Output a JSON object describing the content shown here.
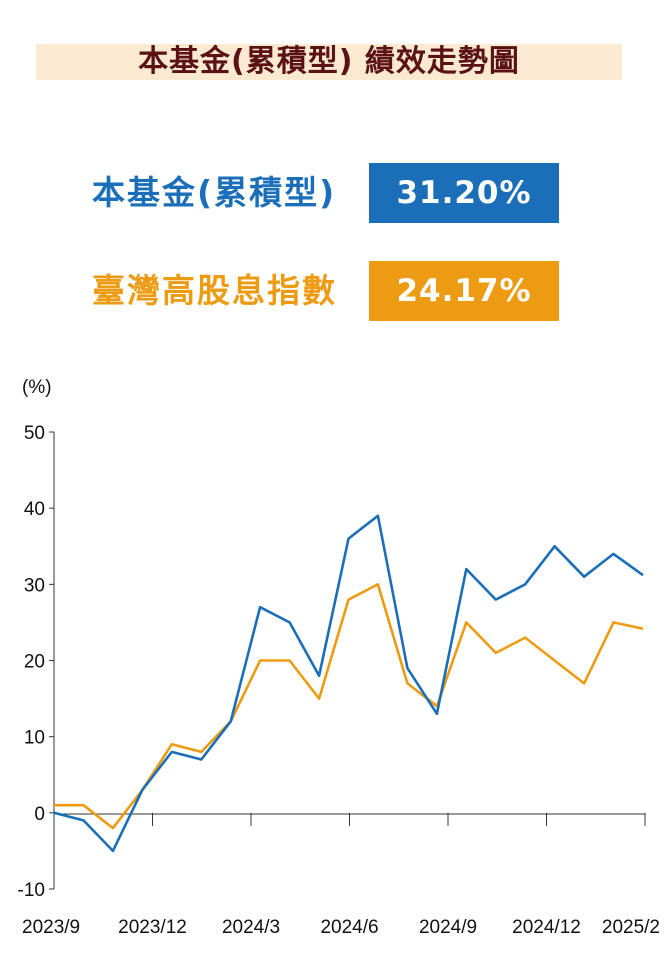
{
  "title": "本基金(累積型) 績效走勢圖",
  "legend": [
    {
      "label": "本基金(累積型)",
      "value": "31.20%",
      "color": "#1a6fb8"
    },
    {
      "label": "臺灣高股息指數",
      "value": "24.17%",
      "color": "#ed9b12"
    }
  ],
  "chart_data": {
    "type": "line",
    "ylabel": "(%)",
    "ylim": [
      -10,
      50
    ],
    "yticks": [
      "50",
      "40",
      "30",
      "20",
      "10",
      "0",
      "-10"
    ],
    "xticks": [
      "2023/9",
      "2023/12",
      "2024/3",
      "2024/6",
      "2024/9",
      "2024/12",
      "2025/2"
    ],
    "x": [
      "2023/9",
      "2023/10",
      "2023/10",
      "2023/11",
      "2023/12",
      "2024/1",
      "2024/2",
      "2024/3",
      "2024/4",
      "2024/5",
      "2024/6",
      "2024/7",
      "2024/8",
      "2024/8",
      "2024/9",
      "2024/10",
      "2024/11",
      "2024/12",
      "2025/1",
      "2025/2",
      "2025/2"
    ],
    "series": [
      {
        "name": "本基金(累積型)",
        "color": "#1a6fb8",
        "values": [
          0,
          -1,
          -5,
          3,
          8,
          7,
          12,
          27,
          25,
          18,
          36,
          39,
          19,
          13,
          32,
          28,
          30,
          35,
          31,
          34,
          31.2
        ]
      },
      {
        "name": "臺灣高股息指數",
        "color": "#ed9b12",
        "values": [
          1,
          1,
          -2,
          3,
          9,
          8,
          12,
          20,
          20,
          15,
          28,
          30,
          17,
          14,
          25,
          21,
          23,
          20,
          17,
          25,
          24.17
        ]
      }
    ],
    "grid": false
  }
}
